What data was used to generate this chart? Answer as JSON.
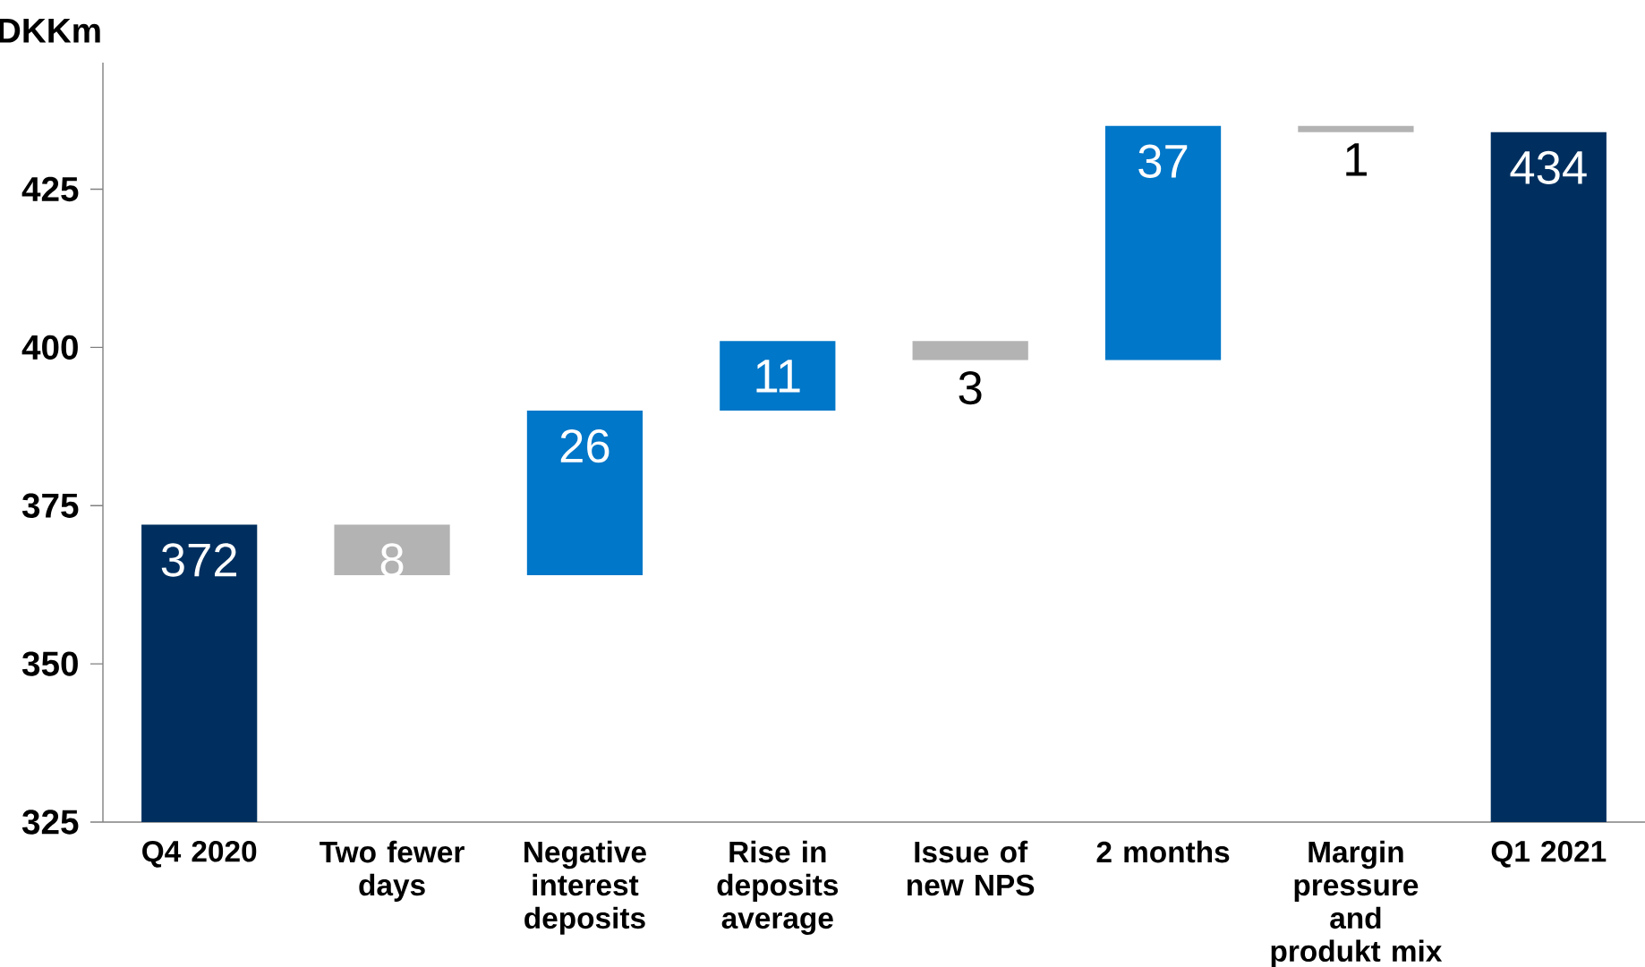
{
  "chart_data": {
    "type": "bar",
    "ylabel": "DKKm",
    "categories": [
      "Q4 2020",
      "Two fewer days",
      "Negative interest deposits",
      "Rise in deposits average",
      "Issue of new NPS",
      "2 months",
      "Margin pressure and produkt mix",
      "Q1 2021"
    ],
    "values": [
      372,
      -8,
      26,
      11,
      -3,
      37,
      -1,
      434
    ],
    "base": [
      null,
      372,
      364,
      390,
      401,
      398,
      435,
      null
    ],
    "colors": [
      "#002f5f",
      "#b3b3b3",
      "#0077c8",
      "#0077c8",
      "#b3b3b3",
      "#0077c8",
      "#b3b3b3",
      "#002f5f"
    ],
    "value_labels": [
      "372",
      "8",
      "26",
      "11",
      "3",
      "37",
      "1",
      "434"
    ],
    "ylim": [
      325,
      445
    ],
    "yticks": [
      325,
      350,
      375,
      400,
      425
    ]
  }
}
